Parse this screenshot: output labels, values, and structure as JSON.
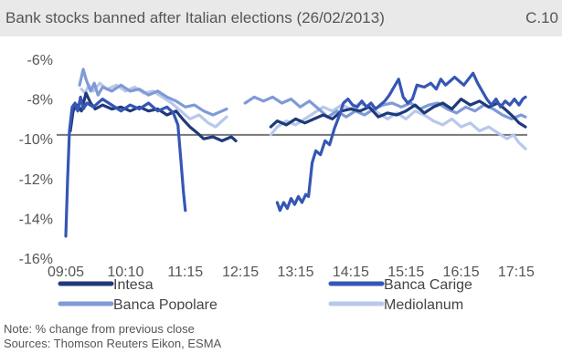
{
  "header": {
    "title": "Bank stocks banned after Italian elections (26/02/2013)",
    "code": "C.10"
  },
  "notes": {
    "note": "Note: % change from previous close",
    "sources": "Sources: Thomson Reuters Eikon, ESMA"
  },
  "chart_data": {
    "type": "line",
    "ylim": [
      -16,
      -6
    ],
    "yticks": [
      -16,
      -14,
      -12,
      -10,
      -8,
      -6
    ],
    "ytick_labels": [
      "-16%",
      "-14%",
      "-12%",
      "-10%",
      "-8%",
      "-6%"
    ],
    "xlim": [
      "09:05",
      "17:25"
    ],
    "xticks": [
      "09:05",
      "10:10",
      "11:15",
      "12:15",
      "13:15",
      "14:15",
      "15:15",
      "16:15",
      "17:15"
    ],
    "reference_line": -9.8,
    "legend_position": "bottom",
    "series": [
      {
        "name": "Intesa",
        "color": "#1f3a7a",
        "segments": [
          [
            [
              "09:10",
              -9.6
            ],
            [
              "09:13",
              -8.6
            ],
            [
              "09:17",
              -8.3
            ],
            [
              "09:22",
              -8.6
            ],
            [
              "09:27",
              -7.7
            ],
            [
              "09:32",
              -8.2
            ],
            [
              "09:37",
              -8.5
            ],
            [
              "09:45",
              -8.3
            ],
            [
              "09:55",
              -8.5
            ],
            [
              "10:05",
              -8.4
            ],
            [
              "10:15",
              -8.6
            ],
            [
              "10:25",
              -8.4
            ],
            [
              "10:35",
              -8.6
            ],
            [
              "10:45",
              -8.5
            ],
            [
              "10:55",
              -8.8
            ],
            [
              "11:05",
              -8.6
            ],
            [
              "11:12",
              -9.0
            ],
            [
              "11:20",
              -9.4
            ],
            [
              "11:28",
              -9.7
            ],
            [
              "11:35",
              -10.0
            ],
            [
              "11:45",
              -9.9
            ],
            [
              "11:55",
              -10.1
            ],
            [
              "12:05",
              -9.9
            ],
            [
              "12:10",
              -10.1
            ]
          ],
          [
            [
              "12:48",
              -9.4
            ],
            [
              "12:55",
              -9.1
            ],
            [
              "13:05",
              -9.3
            ],
            [
              "13:15",
              -9.0
            ],
            [
              "13:25",
              -9.2
            ],
            [
              "13:35",
              -9.0
            ],
            [
              "13:45",
              -8.8
            ],
            [
              "13:55",
              -9.0
            ],
            [
              "14:05",
              -8.6
            ],
            [
              "14:15",
              -8.5
            ],
            [
              "14:25",
              -8.6
            ],
            [
              "14:35",
              -8.4
            ],
            [
              "14:45",
              -8.9
            ],
            [
              "14:55",
              -8.7
            ],
            [
              "15:05",
              -8.8
            ],
            [
              "15:15",
              -8.6
            ],
            [
              "15:25",
              -8.3
            ],
            [
              "15:35",
              -8.7
            ],
            [
              "15:45",
              -8.4
            ],
            [
              "15:55",
              -8.2
            ],
            [
              "16:05",
              -8.5
            ],
            [
              "16:15",
              -8.0
            ],
            [
              "16:25",
              -8.3
            ],
            [
              "16:35",
              -8.1
            ],
            [
              "16:45",
              -8.4
            ],
            [
              "16:55",
              -8.2
            ],
            [
              "17:05",
              -8.6
            ],
            [
              "17:12",
              -8.9
            ],
            [
              "17:18",
              -9.2
            ],
            [
              "17:25",
              -9.4
            ]
          ]
        ]
      },
      {
        "name": "Banca Carige",
        "color": "#3556b4",
        "segments": [
          [
            [
              "09:05",
              -14.9
            ],
            [
              "09:07",
              -12.0
            ],
            [
              "09:09",
              -9.6
            ],
            [
              "09:12",
              -8.4
            ],
            [
              "09:15",
              -8.2
            ],
            [
              "09:18",
              -8.6
            ],
            [
              "09:21",
              -7.9
            ],
            [
              "09:24",
              -8.5
            ],
            [
              "09:28",
              -8.2
            ],
            [
              "09:35",
              -8.4
            ],
            [
              "09:45",
              -8.0
            ],
            [
              "09:55",
              -8.3
            ],
            [
              "10:05",
              -8.6
            ],
            [
              "10:15",
              -8.3
            ],
            [
              "10:25",
              -8.5
            ],
            [
              "10:35",
              -8.2
            ],
            [
              "10:45",
              -8.6
            ],
            [
              "10:55",
              -8.4
            ],
            [
              "11:02",
              -8.7
            ],
            [
              "11:07",
              -9.3
            ],
            [
              "11:10",
              -11.0
            ],
            [
              "11:13",
              -12.7
            ],
            [
              "11:15",
              -13.6
            ]
          ],
          [
            [
              "12:55",
              -13.2
            ],
            [
              "12:58",
              -13.6
            ],
            [
              "13:02",
              -13.2
            ],
            [
              "13:06",
              -13.5
            ],
            [
              "13:10",
              -13.0
            ],
            [
              "13:14",
              -13.3
            ],
            [
              "13:18",
              -12.9
            ],
            [
              "13:22",
              -13.2
            ],
            [
              "13:26",
              -12.8
            ],
            [
              "13:29",
              -12.9
            ],
            [
              "13:33",
              -11.2
            ],
            [
              "13:37",
              -10.6
            ],
            [
              "13:42",
              -10.8
            ],
            [
              "13:47",
              -10.1
            ],
            [
              "13:52",
              -10.3
            ],
            [
              "13:57",
              -9.5
            ],
            [
              "14:02",
              -8.9
            ],
            [
              "14:07",
              -8.2
            ],
            [
              "14:12",
              -8.0
            ],
            [
              "14:17",
              -8.3
            ],
            [
              "14:22",
              -8.4
            ],
            [
              "14:27",
              -8.1
            ],
            [
              "14:32",
              -8.4
            ],
            [
              "14:37",
              -8.2
            ],
            [
              "14:42",
              -8.5
            ],
            [
              "14:47",
              -8.3
            ],
            [
              "14:52",
              -8.1
            ],
            [
              "14:57",
              -7.8
            ],
            [
              "15:02",
              -7.4
            ],
            [
              "15:07",
              -7.0
            ],
            [
              "15:12",
              -7.9
            ],
            [
              "15:17",
              -8.2
            ],
            [
              "15:22",
              -8.0
            ],
            [
              "15:27",
              -7.3
            ],
            [
              "15:35",
              -7.4
            ],
            [
              "15:42",
              -7.2
            ],
            [
              "15:48",
              -7.5
            ],
            [
              "15:53",
              -7.0
            ],
            [
              "15:58",
              -7.3
            ],
            [
              "16:03",
              -7.1
            ],
            [
              "16:08",
              -6.9
            ],
            [
              "16:13",
              -7.1
            ],
            [
              "16:18",
              -7.3
            ],
            [
              "16:23",
              -7.0
            ],
            [
              "16:28",
              -6.7
            ],
            [
              "16:33",
              -7.2
            ],
            [
              "16:38",
              -7.6
            ],
            [
              "16:43",
              -8.0
            ],
            [
              "16:48",
              -8.3
            ],
            [
              "16:53",
              -8.0
            ],
            [
              "16:58",
              -8.4
            ],
            [
              "17:03",
              -8.1
            ],
            [
              "17:08",
              -8.3
            ],
            [
              "17:13",
              -8.0
            ],
            [
              "17:18",
              -8.3
            ],
            [
              "17:22",
              -8.0
            ],
            [
              "17:25",
              -7.9
            ]
          ]
        ]
      },
      {
        "name": "Banca Popolare",
        "color": "#7f9ad6",
        "segments": [
          [
            [
              "09:20",
              -7.3
            ],
            [
              "09:24",
              -6.5
            ],
            [
              "09:27",
              -7.0
            ],
            [
              "09:32",
              -7.6
            ],
            [
              "09:36",
              -7.2
            ],
            [
              "09:40",
              -7.8
            ],
            [
              "09:45",
              -7.4
            ],
            [
              "09:55",
              -7.6
            ],
            [
              "10:05",
              -7.3
            ],
            [
              "10:15",
              -7.6
            ],
            [
              "10:25",
              -7.5
            ],
            [
              "10:35",
              -7.8
            ],
            [
              "10:45",
              -7.6
            ],
            [
              "10:55",
              -7.9
            ],
            [
              "11:05",
              -8.1
            ],
            [
              "11:15",
              -8.4
            ],
            [
              "11:25",
              -8.3
            ],
            [
              "11:35",
              -8.6
            ],
            [
              "11:45",
              -8.8
            ],
            [
              "11:55",
              -8.6
            ],
            [
              "12:00",
              -8.5
            ]
          ],
          [
            [
              "12:20",
              -8.2
            ],
            [
              "12:30",
              -7.9
            ],
            [
              "12:40",
              -8.1
            ],
            [
              "12:50",
              -7.9
            ],
            [
              "13:00",
              -8.2
            ],
            [
              "13:10",
              -8.0
            ],
            [
              "13:20",
              -8.4
            ],
            [
              "13:30",
              -8.1
            ],
            [
              "13:40",
              -8.5
            ],
            [
              "13:50",
              -8.9
            ],
            [
              "14:00",
              -8.6
            ],
            [
              "14:10",
              -8.9
            ],
            [
              "14:20",
              -8.6
            ],
            [
              "14:30",
              -8.8
            ],
            [
              "14:40",
              -8.5
            ],
            [
              "14:50",
              -8.3
            ],
            [
              "15:00",
              -8.2
            ],
            [
              "15:10",
              -8.4
            ],
            [
              "15:20",
              -8.2
            ],
            [
              "15:30",
              -8.5
            ],
            [
              "15:40",
              -8.3
            ],
            [
              "15:50",
              -8.2
            ],
            [
              "16:00",
              -8.5
            ],
            [
              "16:10",
              -8.7
            ],
            [
              "16:20",
              -8.4
            ],
            [
              "16:30",
              -8.6
            ],
            [
              "16:40",
              -8.3
            ],
            [
              "16:50",
              -8.5
            ],
            [
              "17:00",
              -8.8
            ],
            [
              "17:10",
              -9.0
            ],
            [
              "17:20",
              -8.8
            ],
            [
              "17:25",
              -8.9
            ]
          ]
        ]
      },
      {
        "name": "Mediolanum",
        "color": "#b8c8ec",
        "segments": [
          [
            [
              "09:22",
              -7.5
            ],
            [
              "09:26",
              -7.7
            ],
            [
              "09:30",
              -7.3
            ],
            [
              "09:35",
              -7.6
            ],
            [
              "09:42",
              -7.2
            ],
            [
              "09:50",
              -7.5
            ],
            [
              "10:00",
              -7.3
            ],
            [
              "10:10",
              -7.6
            ],
            [
              "10:20",
              -7.4
            ],
            [
              "10:30",
              -7.7
            ],
            [
              "10:40",
              -7.6
            ],
            [
              "10:50",
              -7.9
            ],
            [
              "11:00",
              -8.2
            ],
            [
              "11:10",
              -8.6
            ],
            [
              "11:20",
              -9.0
            ],
            [
              "11:30",
              -8.8
            ],
            [
              "11:40",
              -9.2
            ],
            [
              "11:48",
              -9.4
            ],
            [
              "11:55",
              -9.1
            ],
            [
              "12:00",
              -8.9
            ]
          ],
          [
            [
              "12:48",
              -9.8
            ],
            [
              "12:55",
              -9.4
            ],
            [
              "13:05",
              -9.1
            ],
            [
              "13:15",
              -9.3
            ],
            [
              "13:25",
              -9.0
            ],
            [
              "13:35",
              -8.7
            ],
            [
              "13:45",
              -8.4
            ],
            [
              "13:55",
              -8.6
            ],
            [
              "14:05",
              -8.3
            ],
            [
              "14:15",
              -8.5
            ],
            [
              "14:25",
              -8.2
            ],
            [
              "14:35",
              -8.4
            ],
            [
              "14:45",
              -8.7
            ],
            [
              "14:55",
              -9.0
            ],
            [
              "15:05",
              -8.7
            ],
            [
              "15:15",
              -9.0
            ],
            [
              "15:25",
              -8.6
            ],
            [
              "15:35",
              -8.8
            ],
            [
              "15:45",
              -9.1
            ],
            [
              "15:55",
              -9.3
            ],
            [
              "16:05",
              -9.0
            ],
            [
              "16:15",
              -9.4
            ],
            [
              "16:25",
              -9.2
            ],
            [
              "16:35",
              -9.6
            ],
            [
              "16:45",
              -9.4
            ],
            [
              "16:55",
              -9.7
            ],
            [
              "17:05",
              -10.0
            ],
            [
              "17:12",
              -9.8
            ],
            [
              "17:18",
              -10.2
            ],
            [
              "17:25",
              -10.5
            ]
          ]
        ]
      }
    ]
  }
}
